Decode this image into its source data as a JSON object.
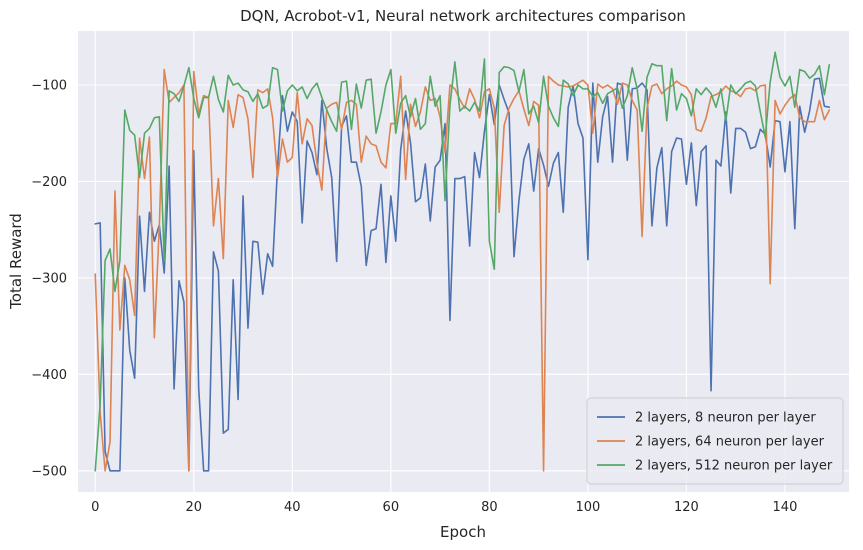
{
  "chart_data": {
    "type": "line",
    "title": "DQN, Acrobot-v1, Neural network architectures comparison",
    "xlabel": "Epoch",
    "ylabel": "Total Reward",
    "xlim": [
      -3.5,
      153
    ],
    "ylim": [
      -522,
      -44
    ],
    "xticks": [
      0,
      20,
      40,
      60,
      80,
      100,
      120,
      140
    ],
    "yticks": [
      -500,
      -400,
      -300,
      -200,
      -100
    ],
    "grid": true,
    "background_color": "#eaeaf2",
    "grid_color": "#ffffff",
    "legend_position": "lower-right",
    "series": [
      {
        "name": "2 layers, 8 neuron per layer",
        "color": "#4c72b0",
        "values": [
          -244,
          -243,
          -480,
          -500,
          -500,
          -500,
          -300,
          -375,
          -404,
          -236,
          -314,
          -232,
          -262,
          -245,
          -295,
          -184,
          -415,
          -303,
          -325,
          -500,
          -168,
          -415,
          -500,
          -500,
          -273,
          -293,
          -461,
          -457,
          -302,
          -426,
          -215,
          -352,
          -262,
          -263,
          -317,
          -275,
          -288,
          -185,
          -111,
          -148,
          -128,
          -138,
          -243,
          -158,
          -170,
          -193,
          -116,
          -166,
          -196,
          -283,
          -143,
          -132,
          -180,
          -180,
          -205,
          -287,
          -251,
          -249,
          -203,
          -284,
          -215,
          -262,
          -167,
          -127,
          -160,
          -221,
          -217,
          -182,
          -241,
          -185,
          -178,
          -140,
          -344,
          -197,
          -197,
          -195,
          -267,
          -170,
          -196,
          -148,
          -110,
          -141,
          -100,
          -115,
          -129,
          -278,
          -220,
          -177,
          -161,
          -210,
          -166,
          -183,
          -205,
          -181,
          -170,
          -232,
          -123,
          -101,
          -140,
          -155,
          -281,
          -98,
          -180,
          -133,
          -112,
          -180,
          -98,
          -100,
          -178,
          -104,
          -103,
          -98,
          -105,
          -246,
          -186,
          -165,
          -246,
          -169,
          -155,
          -156,
          -203,
          -160,
          -225,
          -169,
          -163,
          -417,
          -178,
          -184,
          -128,
          -212,
          -145,
          -145,
          -149,
          -166,
          -164,
          -146,
          -151,
          -185,
          -137,
          -138,
          -190,
          -138,
          -249,
          -122,
          -149,
          -127,
          -94,
          -93,
          -122,
          -123
        ]
      },
      {
        "name": "2 layers, 64 neuron per layer",
        "color": "#dd8452",
        "values": [
          -296,
          -440,
          -500,
          -470,
          -210,
          -354,
          -287,
          -302,
          -339,
          -155,
          -197,
          -154,
          -362,
          -247,
          -84,
          -118,
          -113,
          -108,
          -100,
          -500,
          -86,
          -130,
          -111,
          -113,
          -246,
          -197,
          -280,
          -116,
          -144,
          -110,
          -113,
          -135,
          -196,
          -105,
          -108,
          -104,
          -134,
          -196,
          -156,
          -180,
          -175,
          -108,
          -161,
          -135,
          -142,
          -181,
          -209,
          -124,
          -120,
          -118,
          -146,
          -118,
          -116,
          -120,
          -180,
          -153,
          -161,
          -163,
          -180,
          -186,
          -140,
          -140,
          -91,
          -198,
          -120,
          -143,
          -128,
          -102,
          -116,
          -114,
          -133,
          -170,
          -100,
          -104,
          -115,
          -124,
          -104,
          -115,
          -134,
          -107,
          -104,
          -124,
          -232,
          -142,
          -124,
          -114,
          -106,
          -125,
          -142,
          -117,
          -121,
          -500,
          -91,
          -96,
          -100,
          -101,
          -102,
          -101,
          -98,
          -95,
          -100,
          -150,
          -99,
          -103,
          -100,
          -104,
          -120,
          -98,
          -100,
          -116,
          -126,
          -257,
          -124,
          -101,
          -99,
          -109,
          -104,
          -101,
          -96,
          -100,
          -102,
          -110,
          -146,
          -148,
          -134,
          -112,
          -110,
          -107,
          -101,
          -106,
          -108,
          -112,
          -104,
          -103,
          -106,
          -101,
          -100,
          -306,
          -116,
          -130,
          -121,
          -114,
          -110,
          -134,
          -138,
          -138,
          -138,
          -116,
          -136,
          -126
        ]
      },
      {
        "name": "2 layers, 512 neuron per layer",
        "color": "#55a868",
        "values": [
          -500,
          -430,
          -282,
          -270,
          -314,
          -282,
          -126,
          -147,
          -152,
          -196,
          -150,
          -145,
          -134,
          -133,
          -282,
          -106,
          -109,
          -117,
          -101,
          -82,
          -114,
          -134,
          -113,
          -113,
          -91,
          -115,
          -128,
          -90,
          -100,
          -98,
          -105,
          -107,
          -117,
          -109,
          -124,
          -121,
          -82,
          -84,
          -127,
          -106,
          -100,
          -106,
          -102,
          -114,
          -104,
          -98,
          -113,
          -126,
          -138,
          -148,
          -97,
          -96,
          -146,
          -99,
          -124,
          -95,
          -94,
          -150,
          -128,
          -100,
          -84,
          -150,
          -119,
          -111,
          -133,
          -114,
          -146,
          -140,
          -91,
          -122,
          -111,
          -220,
          -121,
          -76,
          -127,
          -122,
          -127,
          -118,
          -127,
          -73,
          -262,
          -291,
          -87,
          -81,
          -82,
          -85,
          -107,
          -84,
          -130,
          -122,
          -139,
          -91,
          -122,
          -134,
          -143,
          -95,
          -99,
          -111,
          -100,
          -104,
          -104,
          -112,
          -108,
          -119,
          -109,
          -106,
          -103,
          -124,
          -111,
          -82,
          -104,
          -148,
          -92,
          -78,
          -80,
          -80,
          -137,
          -83,
          -126,
          -109,
          -114,
          -132,
          -104,
          -110,
          -103,
          -109,
          -123,
          -104,
          -137,
          -100,
          -109,
          -104,
          -98,
          -96,
          -101,
          -128,
          -154,
          -97,
          -66,
          -92,
          -101,
          -91,
          -123,
          -84,
          -86,
          -93,
          -89,
          -80,
          -110,
          -79
        ]
      }
    ]
  }
}
